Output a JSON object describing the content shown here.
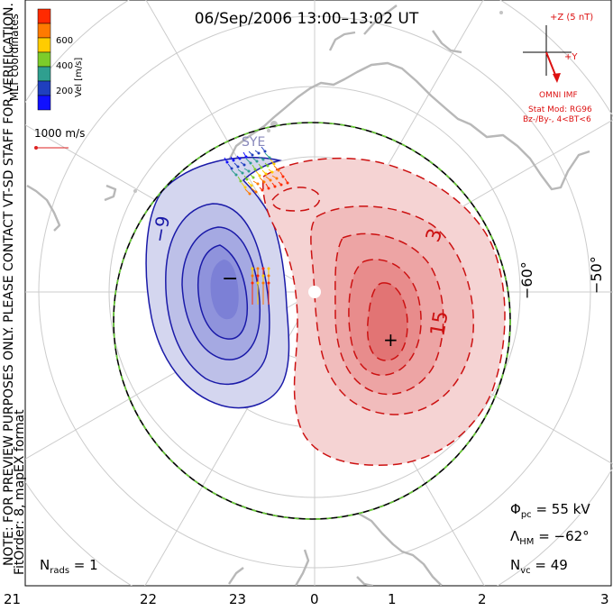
{
  "title": "06/Sep/2006 13:00–13:02 UT",
  "coordinates_label": "MLT coordinates",
  "colorbar": {
    "label": "Vel [m/s]",
    "ticks": [
      "600",
      "400",
      "200"
    ],
    "colors": [
      "#ff2a00",
      "#ff7a00",
      "#ffcc00",
      "#7ccc2a",
      "#2f9f8f",
      "#1f3fbf",
      "#1010ff"
    ]
  },
  "reference_vector": {
    "label": "1000 m/s",
    "color": "#dd2222"
  },
  "notes": {
    "preview": "NOTE: FOR PREVIEW PURPOSES ONLY. PLEASE CONTACT VT-SD STAFF FOR VERIFICATION.",
    "fit": "FitOrder: 8, mapEX format"
  },
  "imf": {
    "bz_label": "+Z (5 nT)",
    "by_label": "+Y",
    "source": "OMNI IMF",
    "model": "Stat Mod: RG96",
    "conditions": "Bz-/By-, 4<BT<6",
    "color": "#dd1111"
  },
  "stats": {
    "phi_pc": {
      "symbol": "Φ",
      "sub": "pc",
      "eq": " = ",
      "value": "55 kV"
    },
    "lambda_hm": {
      "symbol": "Λ",
      "sub": "HM",
      "eq": " = ",
      "value": "−62°"
    },
    "n_vc": {
      "symbol": "N",
      "sub": "vc",
      "eq": " = ",
      "value": "49"
    },
    "n_rads": {
      "symbol": "N",
      "sub": "rads",
      "eq": " = ",
      "value": "1"
    }
  },
  "latitude_labels": [
    "−60°",
    "−50°"
  ],
  "mlt_axis": [
    "21",
    "22",
    "23",
    "0",
    "1",
    "2",
    "3"
  ],
  "radar_label": "SYE",
  "contour_labels": {
    "negative": "−9",
    "positive_outer": "3",
    "positive_inner": "15"
  },
  "extrema": {
    "min_symbol": "−",
    "max_symbol": "+"
  },
  "colors": {
    "negative": "#1a1aa8",
    "positive": "#cc1111",
    "hmb": "#66cc33",
    "continent": "#bbbbbb",
    "grid": "#cccccc"
  }
}
